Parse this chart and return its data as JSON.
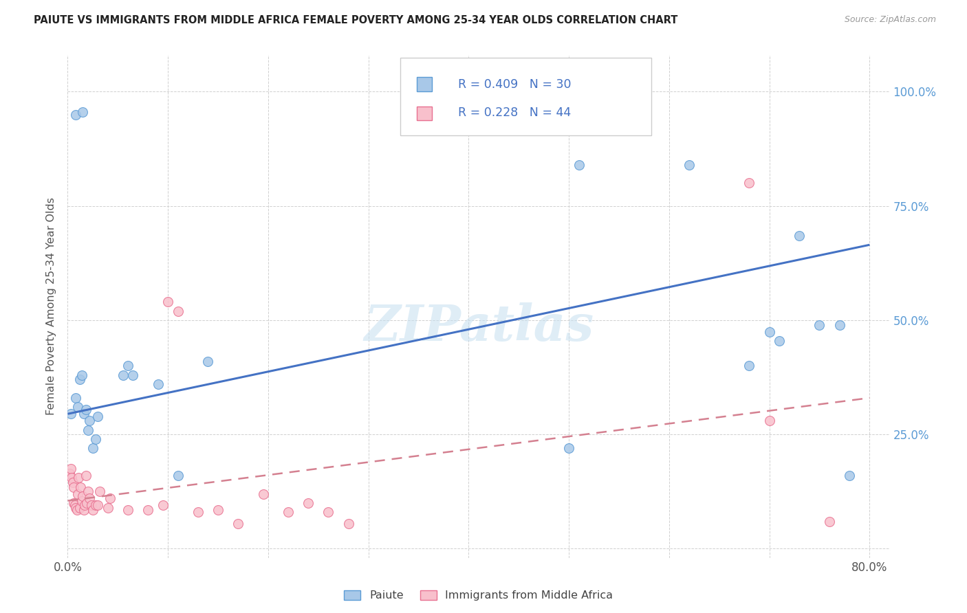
{
  "title": "PAIUTE VS IMMIGRANTS FROM MIDDLE AFRICA FEMALE POVERTY AMONG 25-34 YEAR OLDS CORRELATION CHART",
  "source": "Source: ZipAtlas.com",
  "ylabel": "Female Poverty Among 25-34 Year Olds",
  "legend_label1": "Paiute",
  "legend_label2": "Immigrants from Middle Africa",
  "R1": 0.409,
  "N1": 30,
  "R2": 0.228,
  "N2": 44,
  "xlim": [
    0.0,
    0.82
  ],
  "ylim": [
    -0.02,
    1.08
  ],
  "yticks": [
    0.0,
    0.25,
    0.5,
    0.75,
    1.0
  ],
  "yticklabels": [
    "",
    "25.0%",
    "50.0%",
    "75.0%",
    "100.0%"
  ],
  "xtick_left": "0.0%",
  "xtick_right": "80.0%",
  "color_paiute_fill": "#a8c8e8",
  "color_paiute_edge": "#5b9bd5",
  "color_immigrants_fill": "#f8c0cc",
  "color_immigrants_edge": "#e87090",
  "color_line_paiute": "#4472c4",
  "color_line_immigrants": "#d48090",
  "watermark": "ZIPatlas",
  "paiute_x": [
    0.003,
    0.008,
    0.01,
    0.012,
    0.014,
    0.016,
    0.018,
    0.02,
    0.022,
    0.025,
    0.028,
    0.03,
    0.055,
    0.06,
    0.065,
    0.09,
    0.11,
    0.14,
    0.5,
    0.51,
    0.62,
    0.68,
    0.7,
    0.71,
    0.73,
    0.75,
    0.77,
    0.78,
    0.008,
    0.015
  ],
  "paiute_y": [
    0.295,
    0.33,
    0.31,
    0.37,
    0.38,
    0.295,
    0.305,
    0.26,
    0.28,
    0.22,
    0.24,
    0.29,
    0.38,
    0.4,
    0.38,
    0.36,
    0.16,
    0.41,
    0.22,
    0.84,
    0.84,
    0.4,
    0.475,
    0.455,
    0.685,
    0.49,
    0.49,
    0.16,
    0.95,
    0.955
  ],
  "immigrants_x": [
    0.002,
    0.003,
    0.004,
    0.005,
    0.006,
    0.006,
    0.007,
    0.008,
    0.009,
    0.01,
    0.011,
    0.012,
    0.013,
    0.014,
    0.015,
    0.016,
    0.017,
    0.018,
    0.019,
    0.02,
    0.022,
    0.024,
    0.025,
    0.028,
    0.03,
    0.032,
    0.04,
    0.042,
    0.06,
    0.08,
    0.095,
    0.1,
    0.11,
    0.13,
    0.15,
    0.17,
    0.195,
    0.22,
    0.24,
    0.26,
    0.28,
    0.68,
    0.7,
    0.76
  ],
  "immigrants_y": [
    0.165,
    0.175,
    0.155,
    0.145,
    0.1,
    0.135,
    0.095,
    0.09,
    0.085,
    0.12,
    0.155,
    0.09,
    0.135,
    0.105,
    0.115,
    0.085,
    0.095,
    0.16,
    0.1,
    0.125,
    0.11,
    0.095,
    0.085,
    0.095,
    0.095,
    0.125,
    0.09,
    0.11,
    0.085,
    0.085,
    0.095,
    0.54,
    0.52,
    0.08,
    0.085,
    0.055,
    0.12,
    0.08,
    0.1,
    0.08,
    0.055,
    0.8,
    0.28,
    0.06
  ],
  "line1_x0": 0.0,
  "line1_y0": 0.295,
  "line1_x1": 0.8,
  "line1_y1": 0.665,
  "line2_x0": 0.0,
  "line2_y0": 0.105,
  "line2_x1": 0.8,
  "line2_y1": 0.33
}
